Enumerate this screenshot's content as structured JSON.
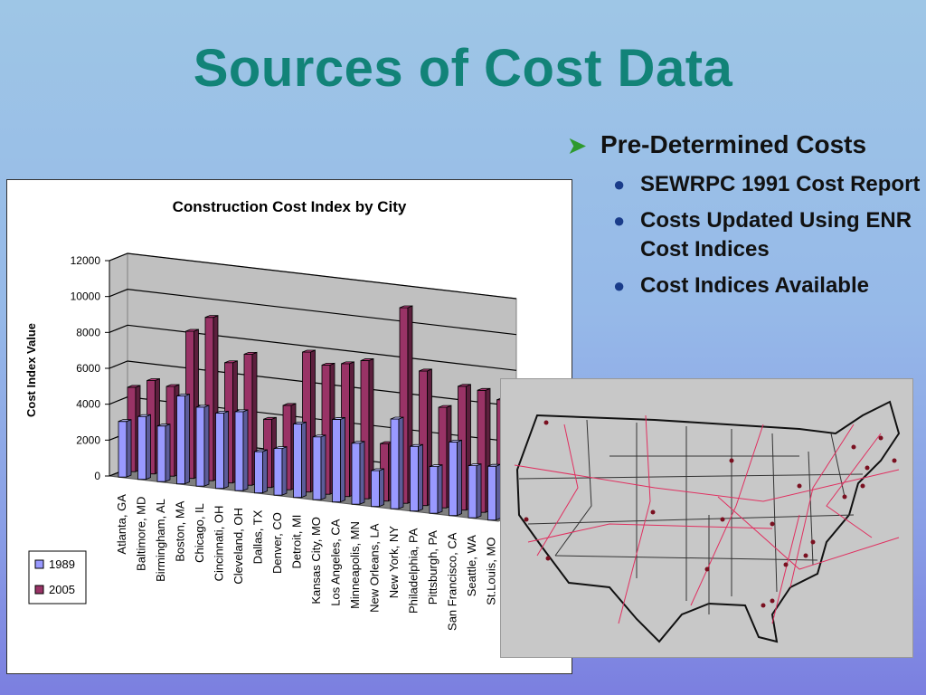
{
  "slide": {
    "title": "Sources of Cost Data",
    "bullets": [
      {
        "text": "Pre-Determined Costs",
        "sub": [
          "SEWRPC 1991 Cost Report",
          "Costs Updated Using ENR Cost Indices",
          "Cost Indices Available"
        ]
      }
    ]
  },
  "chart_data": {
    "type": "bar",
    "title": "Construction Cost Index by City",
    "ylabel": "Cost Index Value",
    "xlabel": "",
    "ylim": [
      0,
      12000
    ],
    "yticks": [
      0,
      2000,
      4000,
      6000,
      8000,
      10000,
      12000
    ],
    "grid": true,
    "legend_position": "bottom-left",
    "categories": [
      "Atlanta, GA",
      "Baltimore, MD",
      "Birmingham, AL",
      "Boston, MA",
      "Chicago, IL",
      "Cincinnati, OH",
      "Cleveland, OH",
      "Dallas, TX",
      "Denver, CO",
      "Detroit, MI",
      "Kansas City, MO",
      "Los Angeles, CA",
      "Minneapolis, MN",
      "New Orleans, LA",
      "New York, NY",
      "Philadelphia, PA",
      "Pittsburgh, PA",
      "San Francisco, CA",
      "Seattle, WA",
      "St.Louis, MO"
    ],
    "series": [
      {
        "name": "1989",
        "color": "#9999ff",
        "values": [
          3100,
          3500,
          3100,
          4900,
          4400,
          4200,
          4400,
          2300,
          2600,
          4100,
          3500,
          4600,
          3400,
          2000,
          5000,
          3600,
          2600,
          4100,
          2900,
          3000
        ]
      },
      {
        "name": "2005",
        "color": "#993366",
        "values": [
          4700,
          5200,
          5000,
          8200,
          9100,
          6700,
          7300,
          3800,
          4700,
          7800,
          7200,
          7400,
          7700,
          3200,
          10900,
          7500,
          5600,
          6900,
          6800,
          6400
        ]
      }
    ]
  },
  "map": {
    "cities": [
      "Seattle, WA",
      "San Francisco, CA",
      "Los Angeles, CA",
      "Denver, CO",
      "Dallas, TX",
      "Kansas City, MO",
      "Minneapolis, MN",
      "Chicago, IL",
      "St.Louis, MO",
      "Detroit, MI",
      "Cleveland, OH",
      "Cincinnati, OH",
      "Pittsburgh, PA",
      "Philadelphia, PA",
      "New York, NY",
      "Boston, MA",
      "Baltimore, MD",
      "Atlanta, GA",
      "Birmingham, AL",
      "New Orleans, LA"
    ]
  }
}
